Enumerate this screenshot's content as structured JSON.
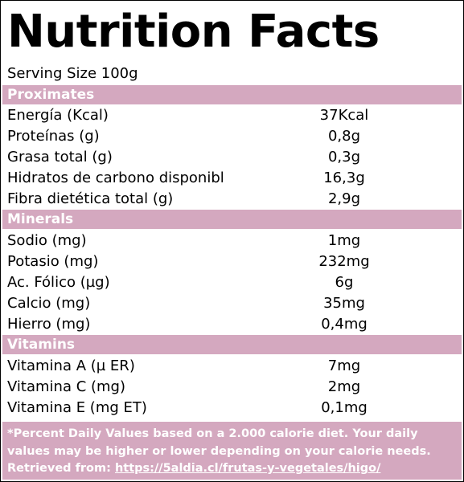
{
  "title": "Nutrition Facts",
  "serving_size": "Serving Size 100g",
  "sections": [
    {
      "name": "Proximates",
      "rows": [
        {
          "label": "Energía (Kcal)",
          "value": "37Kcal"
        },
        {
          "label": "Proteínas (g)",
          "value": "0,8g"
        },
        {
          "label": "Grasa total (g)",
          "value": "0,3g"
        },
        {
          "label": "Hidratos de carbono disponible",
          "value": "16,3g"
        },
        {
          "label": "Fibra dietética total (g)",
          "value": "2,9g"
        }
      ]
    },
    {
      "name": "Minerals",
      "rows": [
        {
          "label": "Sodio (mg)",
          "value": "1mg"
        },
        {
          "label": "Potasio (mg)",
          "value": "232mg"
        },
        {
          "label": "Ac. Fólico (µg)",
          "value": "6g"
        },
        {
          "label": "Calcio (mg)",
          "value": "35mg"
        },
        {
          "label": "Hierro (mg)",
          "value": "0,4mg"
        }
      ]
    },
    {
      "name": "Vitamins",
      "rows": [
        {
          "label": "Vitamina A (µ ER)",
          "value": "7mg"
        },
        {
          "label": "Vitamina C (mg)",
          "value": "2mg"
        },
        {
          "label": "Vitamina E (mg ET)",
          "value": "0,1mg"
        }
      ]
    }
  ],
  "footnote": {
    "line1": "*Percent Daily Values based on a 2.000 calorie diet. Your daily",
    "line2": "values may be higher or lower depending on your calorie needs.",
    "retrieved_prefix": "Retrieved from: ",
    "retrieved_link": "https://5aldia.cl/frutas-y-vegetales/higo/"
  },
  "colors": {
    "section_background": "#d4a8bf",
    "section_text": "#ffffff",
    "border": "#000000"
  }
}
